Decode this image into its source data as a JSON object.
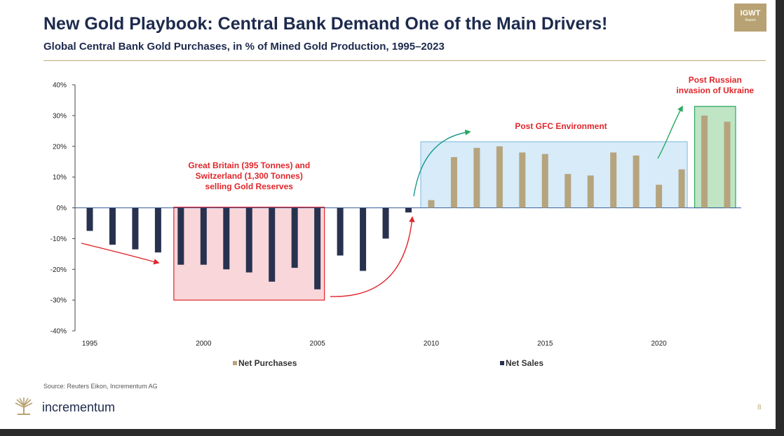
{
  "header": {
    "title": "New Gold Playbook: Central Bank Demand One of the Main Drivers!",
    "subtitle": "Global Central Bank Gold Purchases, in % of Mined Gold Production, 1995–2023",
    "badge_main": "IGWT",
    "badge_sub": "Report"
  },
  "footer": {
    "source": "Source: Reuters Eikon, Incrementum AG",
    "brand": "incrementum",
    "page": "8"
  },
  "colors": {
    "net_purchases": "#b5a47e",
    "net_sales": "#28324f",
    "accent_red": "#e0262b",
    "accent_green": "#2aa860",
    "title_navy": "#1d2a4d",
    "gold": "#b8a273"
  },
  "chart_data": {
    "type": "bar",
    "title": "Global Central Bank Gold Purchases, in % of Mined Gold Production, 1995–2023",
    "x": [
      1995,
      1996,
      1997,
      1998,
      1999,
      2000,
      2001,
      2002,
      2003,
      2004,
      2005,
      2006,
      2007,
      2008,
      2009,
      2010,
      2011,
      2012,
      2013,
      2014,
      2015,
      2016,
      2017,
      2018,
      2019,
      2020,
      2021,
      2022,
      2023
    ],
    "values": [
      -7.5,
      -12,
      -13.5,
      -14.5,
      -18.5,
      -18.5,
      -20,
      -21,
      -24,
      -19.5,
      -26.5,
      -15.5,
      -20.5,
      -10,
      -1.5,
      2.5,
      16.5,
      19.5,
      20,
      18,
      17.5,
      11,
      10.5,
      18,
      17,
      7.5,
      12.5,
      30,
      28
    ],
    "series": [
      {
        "name": "Net Purchases",
        "sign": "positive"
      },
      {
        "name": "Net Sales",
        "sign": "negative"
      }
    ],
    "xticks": [
      1995,
      2000,
      2005,
      2010,
      2015,
      2020
    ],
    "ylim": [
      -40,
      40
    ],
    "yticks": [
      "40%",
      "30%",
      "20%",
      "10%",
      "0%",
      "-10%",
      "-20%",
      "-30%",
      "-40%"
    ],
    "ytick_values": [
      40,
      30,
      20,
      10,
      0,
      -10,
      -20,
      -30,
      -40
    ],
    "legend": "bottom",
    "grid": false,
    "annotations": [
      {
        "text": "Great Britain (395 Tonnes) and Switzerland (1,300 Tonnes) selling Gold Reserves",
        "lines": [
          "Great Britain (395 Tonnes) and",
          "Switzerland (1,300 Tonnes)",
          "selling Gold Reserves"
        ],
        "region": [
          1999,
          2005
        ]
      },
      {
        "text": "Post GFC Environment",
        "lines": [
          "Post GFC Environment"
        ],
        "region": [
          2010,
          2021
        ]
      },
      {
        "text": "Post Russian invasion of Ukraine",
        "lines": [
          "Post Russian",
          "invasion of Ukraine"
        ],
        "region": [
          2022,
          2023
        ]
      }
    ]
  }
}
